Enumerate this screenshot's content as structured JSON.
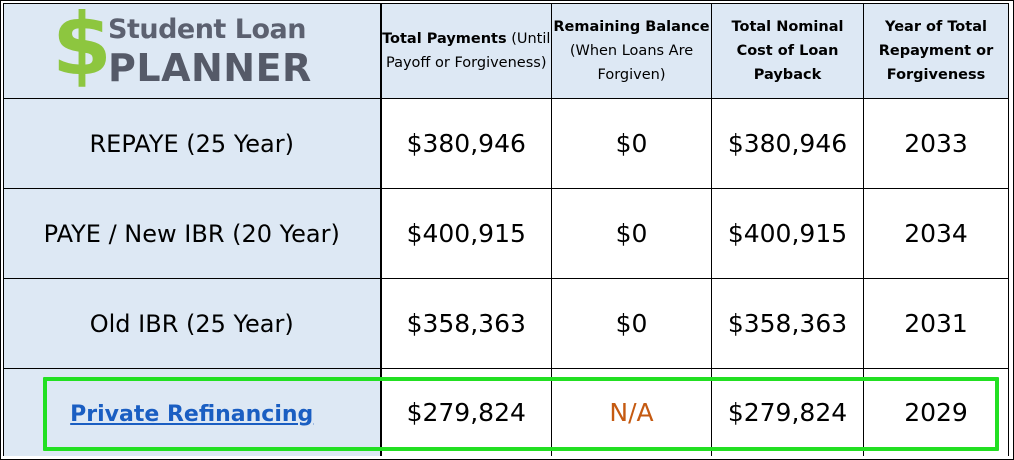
{
  "logo": {
    "symbol": "$",
    "line1": "Student Loan",
    "line2": "PLANNER",
    "colors": {
      "dollar": "#8dc63f",
      "text": "#5c6170"
    }
  },
  "headers": [
    {
      "bold": "Total Payments",
      "rest": " (Until Payoff or Forgiveness)"
    },
    {
      "bold": "Remaining Balance",
      "rest": " (When Loans Are Forgiven)"
    },
    {
      "bold": "Total Nominal Cost of Loan Payback",
      "rest": ""
    },
    {
      "bold": "Year of Total Repayment or Forgiveness",
      "rest": ""
    }
  ],
  "rows": [
    {
      "plan": "REPAYE (25 Year)",
      "total_payments": "$380,946",
      "remaining": "$0",
      "nominal_cost": "$380,946",
      "year": "2033"
    },
    {
      "plan": "PAYE / New IBR (20 Year)",
      "total_payments": "$400,915",
      "remaining": "$0",
      "nominal_cost": "$400,915",
      "year": "2034"
    },
    {
      "plan": "Old IBR (25 Year)",
      "total_payments": "$358,363",
      "remaining": "$0",
      "nominal_cost": "$358,363",
      "year": "2031"
    },
    {
      "plan": "Private Refinancing",
      "total_payments": "$279,824",
      "remaining": "N/A",
      "nominal_cost": "$279,824",
      "year": "2029"
    }
  ],
  "colors": {
    "header_bg": "#dde8f4",
    "link": "#1a5ec2",
    "na": "#c55a11",
    "highlight": "#22e022"
  }
}
